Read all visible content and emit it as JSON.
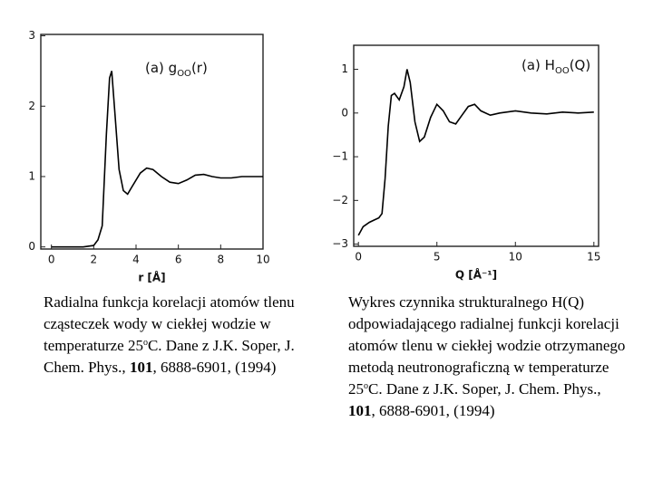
{
  "chart_data": [
    {
      "type": "line",
      "title_parts": [
        "(a) g",
        "OO",
        "(r)"
      ],
      "xlabel": "r [Å]",
      "xlim": [
        -0.5,
        10
      ],
      "xticks": [
        0,
        2,
        4,
        6,
        8,
        10
      ],
      "ylim": [
        -0.03,
        3.02
      ],
      "yticks": [
        0,
        1,
        2,
        3
      ],
      "color": "#000000",
      "x": [
        0,
        0.5,
        1,
        1.5,
        2,
        2.2,
        2.4,
        2.6,
        2.75,
        2.85,
        3.0,
        3.2,
        3.4,
        3.6,
        3.8,
        4.2,
        4.5,
        4.8,
        5.2,
        5.6,
        6.0,
        6.4,
        6.8,
        7.2,
        7.6,
        8.0,
        8.5,
        9.0,
        9.5,
        10
      ],
      "values": [
        0,
        0,
        0,
        0,
        0.02,
        0.1,
        0.3,
        1.6,
        2.4,
        2.5,
        1.9,
        1.1,
        0.8,
        0.75,
        0.85,
        1.05,
        1.12,
        1.1,
        1.0,
        0.92,
        0.9,
        0.95,
        1.02,
        1.03,
        1.0,
        0.98,
        0.98,
        1.0,
        1.0,
        1.0
      ],
      "caption_parts": [
        "Radialna funkcja korelacji atomów tlenu cząsteczek wody w ciekłej wodzie w temperaturze 25",
        "o",
        "C. Dane z J.K. Soper, J. Chem. Phys., ",
        "101",
        ", 6888-6901, (1994)"
      ]
    },
    {
      "type": "line",
      "title_parts": [
        "(a) H",
        "OO",
        "(Q)"
      ],
      "xlabel": "Q [Å⁻¹]",
      "xlim": [
        -0.3,
        15.3
      ],
      "xticks": [
        0,
        5,
        10,
        15
      ],
      "ylim": [
        -3.05,
        1.55
      ],
      "yticks": [
        {
          "value": -3,
          "label": "−3"
        },
        {
          "value": -2,
          "label": "−2"
        },
        {
          "value": -1,
          "label": "−1"
        },
        0,
        1
      ],
      "color": "#000000",
      "x": [
        0,
        0.3,
        0.7,
        1.0,
        1.3,
        1.5,
        1.7,
        1.9,
        2.1,
        2.3,
        2.6,
        2.9,
        3.1,
        3.3,
        3.6,
        3.9,
        4.2,
        4.6,
        5.0,
        5.4,
        5.8,
        6.2,
        6.6,
        7.0,
        7.4,
        7.8,
        8.4,
        9,
        10,
        11,
        12,
        13,
        14,
        15
      ],
      "values": [
        -2.8,
        -2.6,
        -2.5,
        -2.45,
        -2.4,
        -2.3,
        -1.5,
        -0.3,
        0.4,
        0.45,
        0.3,
        0.6,
        1.0,
        0.7,
        -0.2,
        -0.65,
        -0.55,
        -0.1,
        0.2,
        0.05,
        -0.2,
        -0.25,
        -0.05,
        0.15,
        0.2,
        0.05,
        -0.05,
        0.0,
        0.05,
        0.0,
        -0.02,
        0.02,
        0.0,
        0.02
      ],
      "caption_parts": [
        "Wykres czynnika strukturalnego H(Q) odpowiadającego radialnej funkcji korelacji atomów tlenu w ciekłej wodzie otrzymanego metodą neutronograficzną w temperaturze 25",
        "o",
        "C. Dane z J.K. Soper, J. Chem. Phys., ",
        "101",
        ", 6888-6901, (1994)"
      ]
    }
  ]
}
